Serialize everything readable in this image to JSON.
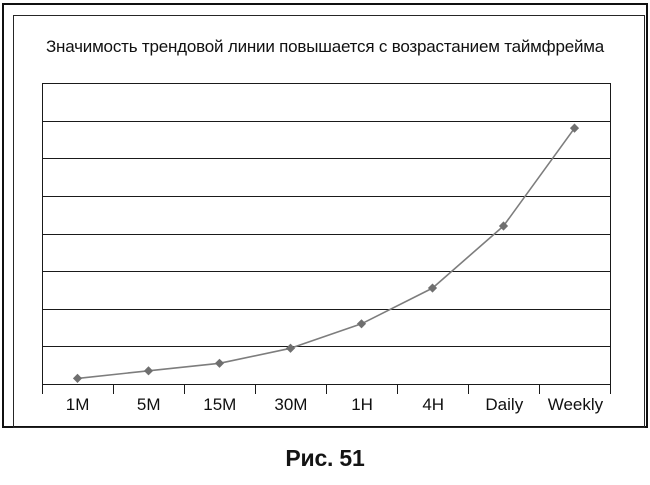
{
  "figure": {
    "title": "Значимость трендовой линии повышается с возрастанием таймфрейма",
    "caption": "Рис. 51"
  },
  "chart_data": {
    "type": "line",
    "title": "Значимость трендовой линии повышается с возрастанием таймфрейма",
    "categories": [
      "1M",
      "5M",
      "15M",
      "30M",
      "1H",
      "4H",
      "Daily",
      "Weekly"
    ],
    "values": [
      0.15,
      0.35,
      0.55,
      0.95,
      1.6,
      2.55,
      4.2,
      6.8
    ],
    "xlabel": "",
    "ylabel": "",
    "ylim": [
      0,
      8
    ],
    "grid": "horizontal",
    "grid_rows": 8,
    "legend": "none",
    "marker": "diamond",
    "colors": {
      "line": "#7d7d7d",
      "marker": "#6f6f6f",
      "axis": "#1a1a1a",
      "frame": "#101010"
    }
  }
}
